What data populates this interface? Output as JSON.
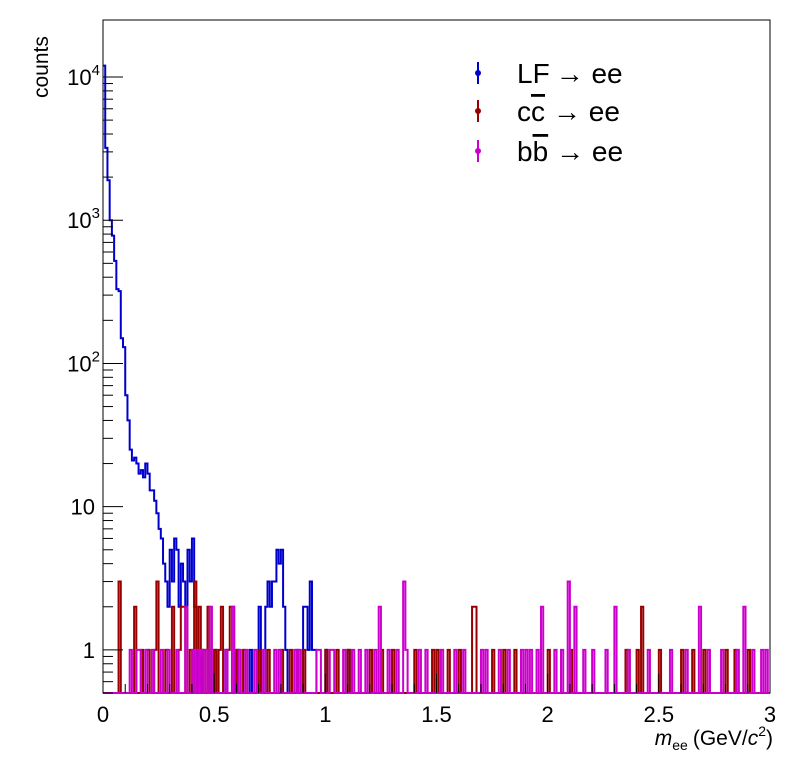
{
  "chart_data": {
    "type": "line",
    "xlabel": {
      "main": "m",
      "sub": "ee",
      "units_pre": "(GeV/",
      "units_c": "c",
      "units_sup": "2",
      "units_post": ")"
    },
    "ylabel": "counts",
    "xlim": [
      0,
      3
    ],
    "ylim": [
      0.5,
      25000
    ],
    "yscale": "log",
    "x_ticks": [
      {
        "value": 0,
        "label": "0"
      },
      {
        "value": 0.5,
        "label": "0.5"
      },
      {
        "value": 1,
        "label": "1"
      },
      {
        "value": 1.5,
        "label": "1.5"
      },
      {
        "value": 2,
        "label": "2"
      },
      {
        "value": 2.5,
        "label": "2.5"
      },
      {
        "value": 3,
        "label": "3"
      }
    ],
    "y_ticks": [
      {
        "value": 1,
        "label": "1"
      },
      {
        "value": 10,
        "label": "10"
      },
      {
        "value": 100,
        "label": "10",
        "sup": "2"
      },
      {
        "value": 1000,
        "label": "10",
        "sup": "3"
      },
      {
        "value": 10000,
        "label": "10",
        "sup": "4"
      }
    ],
    "bin_width": 0.01,
    "grid": false,
    "legend_position": "top-right",
    "series": [
      {
        "name": "LF → ee",
        "legend": {
          "pre": "LF",
          "bar": "",
          "post": "→ ee"
        },
        "color": "#0000cc",
        "points": [
          [
            0,
            12000
          ],
          [
            0.01,
            3200
          ],
          [
            0.02,
            1900
          ],
          [
            0.03,
            1000
          ],
          [
            0.04,
            780
          ],
          [
            0.05,
            520
          ],
          [
            0.06,
            330
          ],
          [
            0.07,
            320
          ],
          [
            0.08,
            150
          ],
          [
            0.09,
            130
          ],
          [
            0.1,
            60
          ],
          [
            0.11,
            40
          ],
          [
            0.12,
            25
          ],
          [
            0.13,
            21
          ],
          [
            0.14,
            22
          ],
          [
            0.15,
            20
          ],
          [
            0.16,
            17
          ],
          [
            0.17,
            18
          ],
          [
            0.18,
            16
          ],
          [
            0.19,
            20
          ],
          [
            0.2,
            17
          ],
          [
            0.21,
            13
          ],
          [
            0.22,
            13
          ],
          [
            0.23,
            11
          ],
          [
            0.24,
            9
          ],
          [
            0.25,
            7
          ],
          [
            0.26,
            6
          ],
          [
            0.27,
            4
          ],
          [
            0.28,
            3
          ],
          [
            0.29,
            2
          ],
          [
            0.3,
            5
          ],
          [
            0.31,
            3
          ],
          [
            0.32,
            6
          ],
          [
            0.33,
            5
          ],
          [
            0.34,
            2
          ],
          [
            0.35,
            4
          ],
          [
            0.36,
            3
          ],
          [
            0.37,
            2
          ],
          [
            0.38,
            5
          ],
          [
            0.39,
            3
          ],
          [
            0.4,
            6
          ],
          [
            0.41,
            2
          ],
          [
            0.44,
            1
          ],
          [
            0.47,
            1
          ],
          [
            0.5,
            1
          ],
          [
            0.55,
            1
          ],
          [
            0.6,
            1
          ],
          [
            0.66,
            1
          ],
          [
            0.7,
            2
          ],
          [
            0.73,
            2
          ],
          [
            0.74,
            3
          ],
          [
            0.75,
            2
          ],
          [
            0.76,
            3
          ],
          [
            0.77,
            3
          ],
          [
            0.78,
            5
          ],
          [
            0.79,
            4
          ],
          [
            0.8,
            5
          ],
          [
            0.81,
            2
          ],
          [
            0.82,
            1
          ],
          [
            0.87,
            1
          ],
          [
            0.9,
            2
          ],
          [
            0.91,
            2
          ],
          [
            0.92,
            1
          ],
          [
            0.93,
            3
          ],
          [
            0.94,
            1
          ],
          [
            0.95,
            1
          ],
          [
            1.0,
            1
          ],
          [
            1.1,
            1
          ]
        ]
      },
      {
        "name": "cc̄ → ee",
        "legend": {
          "pre": "c",
          "bar": "c",
          "post": "→ ee"
        },
        "color": "#990000",
        "points": [
          [
            0.07,
            3
          ],
          [
            0.14,
            2
          ],
          [
            0.17,
            1
          ],
          [
            0.2,
            1
          ],
          [
            0.23,
            1
          ],
          [
            0.24,
            3
          ],
          [
            0.28,
            1
          ],
          [
            0.31,
            2
          ],
          [
            0.34,
            1
          ],
          [
            0.35,
            2
          ],
          [
            0.36,
            2
          ],
          [
            0.39,
            1
          ],
          [
            0.41,
            3
          ],
          [
            0.43,
            2
          ],
          [
            0.45,
            1
          ],
          [
            0.47,
            2
          ],
          [
            0.5,
            1
          ],
          [
            0.52,
            1
          ],
          [
            0.53,
            2
          ],
          [
            0.56,
            1
          ],
          [
            0.57,
            2
          ],
          [
            0.58,
            2
          ],
          [
            0.6,
            1
          ],
          [
            0.63,
            1
          ],
          [
            0.7,
            1
          ],
          [
            0.74,
            1
          ],
          [
            0.8,
            1
          ],
          [
            0.84,
            1
          ],
          [
            0.9,
            1
          ],
          [
            1.0,
            1
          ],
          [
            1.05,
            1
          ],
          [
            1.1,
            1
          ],
          [
            1.2,
            1
          ],
          [
            1.25,
            1
          ],
          [
            1.3,
            1
          ],
          [
            1.4,
            1
          ],
          [
            1.48,
            1
          ],
          [
            1.5,
            1
          ],
          [
            1.55,
            1
          ],
          [
            1.6,
            1
          ],
          [
            1.66,
            2
          ],
          [
            1.67,
            2
          ],
          [
            1.75,
            1
          ],
          [
            1.8,
            1
          ],
          [
            1.85,
            1
          ],
          [
            2.0,
            1
          ],
          [
            2.1,
            1
          ],
          [
            2.35,
            1
          ],
          [
            2.4,
            1
          ],
          [
            2.42,
            2
          ],
          [
            2.5,
            1
          ],
          [
            2.6,
            1
          ],
          [
            2.65,
            1
          ],
          [
            2.7,
            1
          ],
          [
            2.8,
            1
          ],
          [
            2.84,
            1
          ],
          [
            2.9,
            1
          ]
        ]
      },
      {
        "name": "bb̄ → ee",
        "legend": {
          "pre": "b",
          "bar": "b",
          "post": "→ ee"
        },
        "color": "#cc00cc",
        "points": [
          [
            0.12,
            1
          ],
          [
            0.15,
            1
          ],
          [
            0.16,
            1
          ],
          [
            0.19,
            1
          ],
          [
            0.22,
            1
          ],
          [
            0.26,
            1
          ],
          [
            0.29,
            1
          ],
          [
            0.33,
            1
          ],
          [
            0.37,
            2
          ],
          [
            0.4,
            1
          ],
          [
            0.42,
            1
          ],
          [
            0.44,
            1
          ],
          [
            0.46,
            1
          ],
          [
            0.48,
            2
          ],
          [
            0.55,
            1
          ],
          [
            0.58,
            2
          ],
          [
            0.61,
            1
          ],
          [
            0.64,
            1
          ],
          [
            0.68,
            1
          ],
          [
            0.72,
            1
          ],
          [
            0.77,
            1
          ],
          [
            0.79,
            1
          ],
          [
            0.86,
            1
          ],
          [
            0.88,
            1
          ],
          [
            0.96,
            1
          ],
          [
            0.97,
            1
          ],
          [
            1.02,
            1
          ],
          [
            1.03,
            1
          ],
          [
            1.08,
            1
          ],
          [
            1.12,
            1
          ],
          [
            1.15,
            1
          ],
          [
            1.18,
            1
          ],
          [
            1.22,
            1
          ],
          [
            1.24,
            2
          ],
          [
            1.28,
            1
          ],
          [
            1.32,
            1
          ],
          [
            1.35,
            3
          ],
          [
            1.36,
            1
          ],
          [
            1.42,
            1
          ],
          [
            1.45,
            1
          ],
          [
            1.52,
            1
          ],
          [
            1.58,
            1
          ],
          [
            1.62,
            1
          ],
          [
            1.7,
            1
          ],
          [
            1.72,
            1
          ],
          [
            1.78,
            1
          ],
          [
            1.82,
            1
          ],
          [
            1.88,
            1
          ],
          [
            1.9,
            1
          ],
          [
            1.92,
            1
          ],
          [
            1.95,
            1
          ],
          [
            1.97,
            2
          ],
          [
            2.03,
            1
          ],
          [
            2.06,
            1
          ],
          [
            2.09,
            3
          ],
          [
            2.12,
            2
          ],
          [
            2.16,
            1
          ],
          [
            2.2,
            1
          ],
          [
            2.26,
            1
          ],
          [
            2.3,
            2
          ],
          [
            2.36,
            1
          ],
          [
            2.45,
            1
          ],
          [
            2.55,
            1
          ],
          [
            2.62,
            1
          ],
          [
            2.68,
            2
          ],
          [
            2.72,
            1
          ],
          [
            2.78,
            1
          ],
          [
            2.85,
            1
          ],
          [
            2.88,
            2
          ],
          [
            2.92,
            1
          ],
          [
            2.96,
            1
          ],
          [
            2.98,
            1
          ]
        ]
      }
    ]
  }
}
